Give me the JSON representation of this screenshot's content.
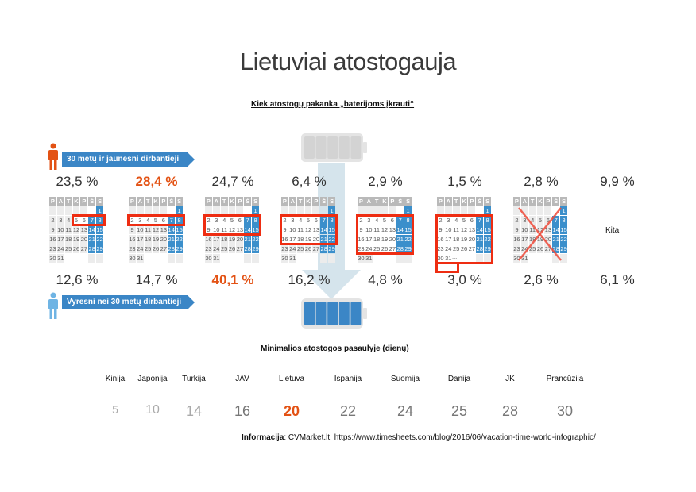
{
  "title": "Lietuviai atostogauja",
  "section1": {
    "subtitle": "Kiek atostogų pakanka „baterijoms įkrauti“",
    "young_label": "30 metų  ir jaunesni dirbantieji",
    "older_label": "Vyresni nei 30 metų  dirbantieji",
    "weekday_headers": [
      "P",
      "A",
      "T",
      "K",
      "P",
      "Š",
      "S"
    ],
    "columns": [
      {
        "young": "23,5 %",
        "older": "12,6 %",
        "young_highlight": false,
        "older_highlight": false,
        "selection": "4 dienos (5–8)"
      },
      {
        "young": "28,4 %",
        "older": "14,7 %",
        "young_highlight": true,
        "older_highlight": false,
        "selection": "1 savaitė"
      },
      {
        "young": "24,7 %",
        "older": "40,1 %",
        "young_highlight": false,
        "older_highlight": true,
        "selection": "2 savaitės"
      },
      {
        "young": "6,4 %",
        "older": "16,2 %",
        "young_highlight": false,
        "older_highlight": false,
        "selection": "3 savaitės"
      },
      {
        "young": "2,9 %",
        "older": "4,8 %",
        "young_highlight": false,
        "older_highlight": false,
        "selection": "4 savaitės"
      },
      {
        "young": "1,5 %",
        "older": "3,0 %",
        "young_highlight": false,
        "older_highlight": false,
        "selection": "daugiau nei mėnuo"
      },
      {
        "young": "2,8 %",
        "older": "2,6 %",
        "young_highlight": false,
        "older_highlight": false,
        "selection": "nereikia atostogų"
      },
      {
        "young": "9,9 %",
        "older": "6,1 %",
        "young_highlight": false,
        "older_highlight": false,
        "label": "Kita"
      }
    ],
    "more_marker": "..."
  },
  "battery": {
    "empty_segments": 5,
    "full_segments": 5,
    "full_color": "#3b86c6"
  },
  "section2": {
    "subtitle": "Minimalios atostogos pasaulyje (dienų)",
    "countries": [
      {
        "name": "Kinija",
        "days": "5"
      },
      {
        "name": "Japonija",
        "days": "10"
      },
      {
        "name": "Turkija",
        "days": "14"
      },
      {
        "name": "JAV",
        "days": "16"
      },
      {
        "name": "Lietuva",
        "days": "20",
        "highlight": true
      },
      {
        "name": "Ispanija",
        "days": "22"
      },
      {
        "name": "Suomija",
        "days": "24"
      },
      {
        "name": "Danija",
        "days": "25"
      },
      {
        "name": "JK",
        "days": "28"
      },
      {
        "name": "Prancūzija",
        "days": "30"
      }
    ]
  },
  "footer": {
    "label": "Informacija",
    "text": ": CVMarket.lt, https://www.timesheets.com/blog/2016/06/vacation-time-world-infographic/"
  },
  "colors": {
    "accent_orange": "#e35214",
    "accent_blue": "#3b86c6",
    "highlight_red": "#ee2d12"
  }
}
